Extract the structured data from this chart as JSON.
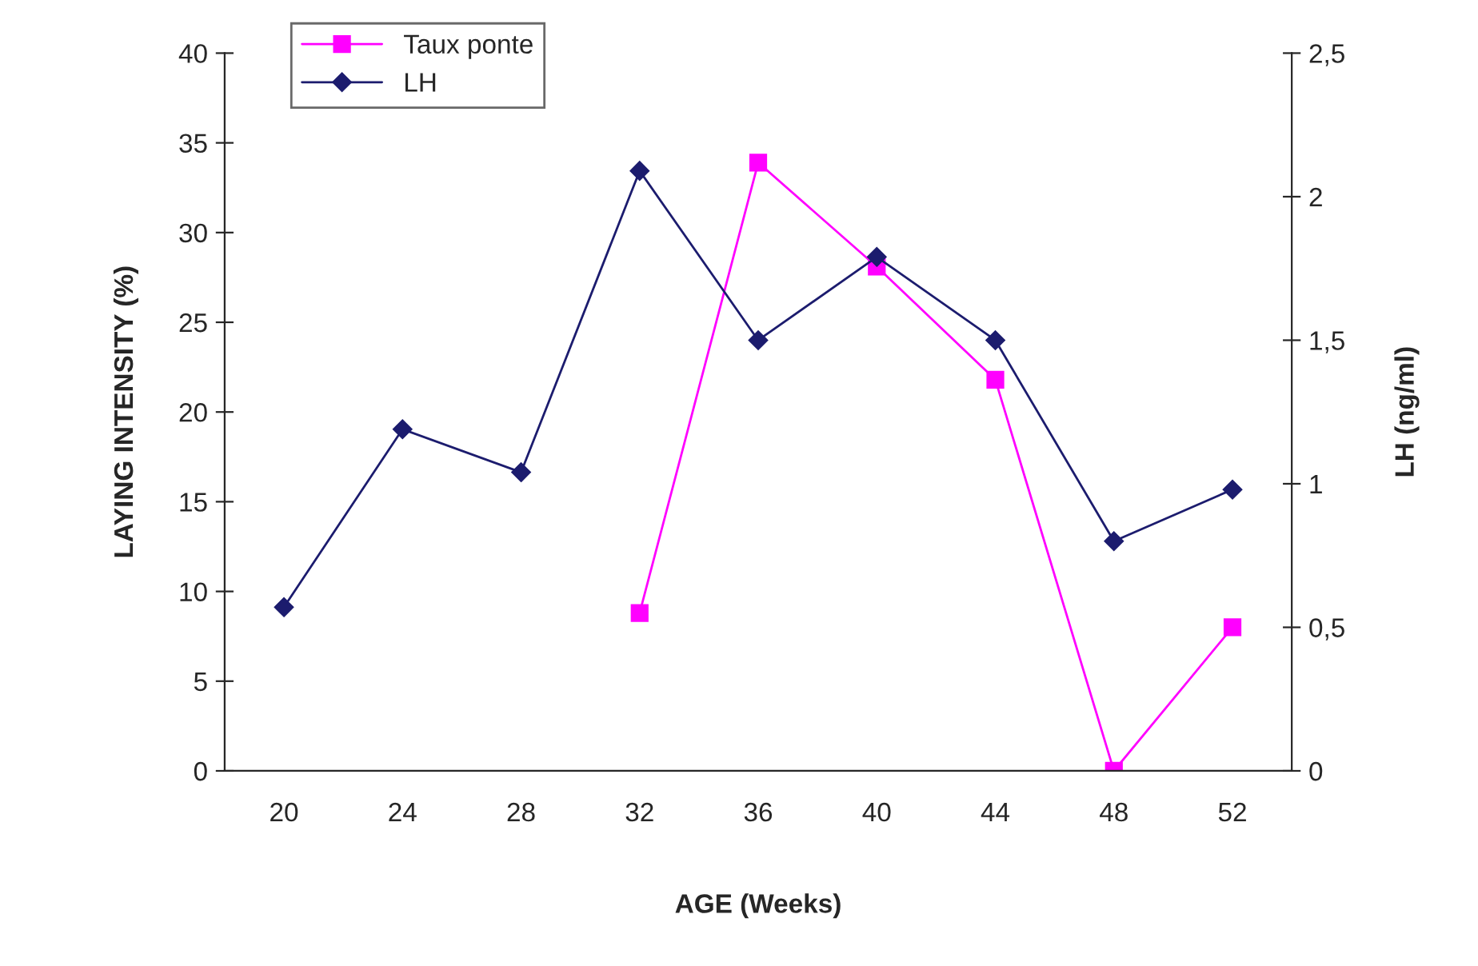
{
  "chart_data": {
    "type": "line",
    "categories": [
      "20",
      "24",
      "28",
      "32",
      "36",
      "40",
      "44",
      "48",
      "52"
    ],
    "xlabel": "AGE (Weeks)",
    "ylabel": "LAYING INTENSITY (%)",
    "y2label": "LH (ng/ml)",
    "series": [
      {
        "name": "Taux ponte",
        "color": "#ff00ff",
        "marker": "square",
        "values": [
          null,
          null,
          null,
          8.8,
          33.9,
          28.1,
          21.8,
          0,
          8.0
        ]
      },
      {
        "name": "LH",
        "color": "#1c1c6e",
        "marker": "diamond",
        "axis": "y2",
        "values": [
          0.57,
          1.19,
          1.04,
          2.09,
          1.5,
          1.79,
          1.5,
          0.8,
          0.98
        ]
      }
    ],
    "ylim": [
      0,
      40
    ],
    "yticks": [
      0,
      5,
      10,
      15,
      20,
      25,
      30,
      35,
      40
    ],
    "y2lim": [
      0,
      2.5
    ],
    "y2ticks": [
      0,
      {
        "value": 0.5,
        "label": "0,5"
      },
      1,
      {
        "value": 1.5,
        "label": "1,5"
      },
      2,
      {
        "value": 2.5,
        "label": "2,5"
      }
    ],
    "grid": false,
    "legend": "top left",
    "line_style": "solid"
  }
}
